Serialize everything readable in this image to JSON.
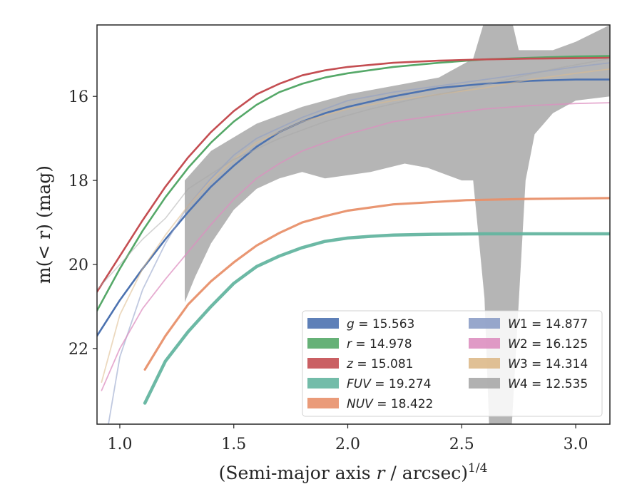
{
  "chart_data": {
    "type": "line",
    "xlabel": "(Semi-major axis r / arcsec)",
    "xlabel_var": "r",
    "xlabel_exp": "1/4",
    "ylabel": "m(< r) (mag)",
    "xlim": [
      0.9,
      3.15
    ],
    "ylim": [
      23.8,
      14.3
    ],
    "y_inverted": true,
    "xticks": [
      1.0,
      1.5,
      2.0,
      2.5,
      3.0
    ],
    "xtick_labels": [
      "1.0",
      "1.5",
      "2.0",
      "2.5",
      "3.0"
    ],
    "yticks": [
      16,
      18,
      20,
      22
    ],
    "ytick_labels": [
      "16",
      "18",
      "20",
      "22"
    ],
    "grid": false,
    "legend_position": "lower-right",
    "series": [
      {
        "name": "g",
        "label": "g = 15.563",
        "sym": "g",
        "value": "15.563",
        "color": "#4c72b0",
        "x": [
          0.9,
          1.0,
          1.1,
          1.2,
          1.3,
          1.4,
          1.5,
          1.6,
          1.7,
          1.8,
          1.9,
          2.0,
          2.2,
          2.4,
          2.6,
          2.8,
          3.0,
          3.15
        ],
        "y": [
          21.7,
          20.85,
          20.1,
          19.4,
          18.75,
          18.15,
          17.65,
          17.2,
          16.85,
          16.6,
          16.4,
          16.25,
          16.0,
          15.8,
          15.7,
          15.63,
          15.6,
          15.6
        ]
      },
      {
        "name": "r",
        "label": "r = 14.978",
        "sym": "r",
        "value": "14.978",
        "color": "#55a868",
        "x": [
          0.9,
          1.0,
          1.1,
          1.2,
          1.3,
          1.4,
          1.5,
          1.6,
          1.7,
          1.8,
          1.9,
          2.0,
          2.2,
          2.4,
          2.6,
          2.8,
          3.0,
          3.15
        ],
        "y": [
          21.1,
          20.1,
          19.2,
          18.4,
          17.7,
          17.1,
          16.6,
          16.2,
          15.9,
          15.7,
          15.55,
          15.45,
          15.3,
          15.2,
          15.12,
          15.08,
          15.05,
          15.04
        ]
      },
      {
        "name": "z",
        "label": "z = 15.081",
        "sym": "z",
        "value": "15.081",
        "color": "#c44e52",
        "x": [
          0.9,
          1.0,
          1.1,
          1.2,
          1.3,
          1.4,
          1.5,
          1.6,
          1.7,
          1.8,
          1.9,
          2.0,
          2.2,
          2.4,
          2.6,
          2.8,
          3.0,
          3.15
        ],
        "y": [
          20.65,
          19.8,
          18.95,
          18.15,
          17.45,
          16.85,
          16.35,
          15.95,
          15.7,
          15.5,
          15.38,
          15.3,
          15.2,
          15.15,
          15.12,
          15.1,
          15.09,
          15.08
        ]
      },
      {
        "name": "FUV",
        "label": "FUV = 19.274",
        "sym": "FUV",
        "value": "19.274",
        "color": "#64b5a0",
        "x": [
          1.11,
          1.2,
          1.3,
          1.4,
          1.5,
          1.6,
          1.7,
          1.8,
          1.9,
          2.0,
          2.1,
          2.2,
          2.37,
          2.6,
          2.8,
          3.0,
          3.15
        ],
        "y": [
          23.3,
          22.3,
          21.6,
          21.0,
          20.45,
          20.05,
          19.8,
          19.6,
          19.45,
          19.37,
          19.33,
          19.3,
          19.28,
          19.27,
          19.27,
          19.27,
          19.27
        ]
      },
      {
        "name": "NUV",
        "label": "NUV = 18.422",
        "sym": "NUV",
        "value": "18.422",
        "color": "#e8906a",
        "x": [
          1.11,
          1.2,
          1.3,
          1.4,
          1.5,
          1.6,
          1.7,
          1.8,
          1.9,
          2.0,
          2.2,
          2.52,
          2.8,
          3.15
        ],
        "y": [
          22.5,
          21.7,
          20.95,
          20.4,
          19.95,
          19.55,
          19.25,
          19.0,
          18.85,
          18.72,
          18.57,
          18.47,
          18.44,
          18.42
        ]
      },
      {
        "name": "W1",
        "label": "W1 = 14.877",
        "sym": "W",
        "sub": "1",
        "value": "14.877",
        "color": "#8c9dc7",
        "x": [
          0.95,
          1.0,
          1.1,
          1.2,
          1.3,
          1.4,
          1.5,
          1.6,
          1.8,
          2.0,
          2.2,
          2.4,
          2.6,
          2.8,
          3.0,
          3.15
        ],
        "y": [
          23.8,
          22.2,
          20.6,
          19.5,
          18.6,
          17.95,
          17.4,
          17.0,
          16.5,
          16.1,
          15.9,
          15.75,
          15.6,
          15.45,
          15.3,
          15.2
        ]
      },
      {
        "name": "W2",
        "label": "W2 = 16.125",
        "sym": "W",
        "sub": "2",
        "value": "16.125",
        "color": "#dd8fc0",
        "x": [
          0.92,
          1.0,
          1.1,
          1.2,
          1.3,
          1.4,
          1.5,
          1.6,
          1.7,
          1.8,
          2.0,
          2.2,
          2.4,
          2.6,
          2.8,
          3.0,
          3.15
        ],
        "y": [
          23.0,
          22.0,
          21.05,
          20.35,
          19.7,
          19.05,
          18.45,
          17.95,
          17.6,
          17.3,
          16.9,
          16.6,
          16.45,
          16.3,
          16.22,
          16.17,
          16.15
        ]
      },
      {
        "name": "W3",
        "label": "W3 = 14.314",
        "sym": "W",
        "sub": "3",
        "value": "14.314",
        "color": "#ddb98a",
        "x": [
          0.92,
          1.0,
          1.1,
          1.2,
          1.3,
          1.4,
          1.5,
          1.6,
          1.8,
          2.0,
          2.2,
          2.4,
          2.6,
          2.8,
          3.0,
          3.15
        ],
        "y": [
          22.8,
          21.2,
          20.1,
          19.3,
          18.6,
          18.0,
          17.5,
          17.1,
          16.6,
          16.3,
          16.1,
          15.95,
          15.8,
          15.6,
          15.45,
          15.35
        ]
      },
      {
        "name": "W4",
        "label": "W4 = 12.535",
        "sym": "W",
        "sub": "4",
        "value": "12.535",
        "color": "#a8a8a8",
        "x": [
          0.9,
          1.0,
          1.1,
          1.2,
          1.3,
          1.5,
          1.7,
          1.9,
          2.1,
          2.3,
          2.5,
          2.7,
          2.9,
          3.15
        ],
        "y": [
          20.6,
          20.0,
          19.4,
          18.9,
          18.2,
          17.5,
          17.0,
          16.6,
          16.3,
          16.05,
          15.85,
          15.6,
          15.35,
          15.1
        ]
      }
    ],
    "w4_band": {
      "x_start": 1.285,
      "upper": [
        [
          1.285,
          18.0
        ],
        [
          1.4,
          17.3
        ],
        [
          1.6,
          16.65
        ],
        [
          1.8,
          16.25
        ],
        [
          2.0,
          15.95
        ],
        [
          2.2,
          15.75
        ],
        [
          2.4,
          15.55
        ],
        [
          2.55,
          15.1
        ],
        [
          2.6,
          14.2
        ],
        [
          2.72,
          14.2
        ],
        [
          2.75,
          14.9
        ],
        [
          2.9,
          14.9
        ],
        [
          3.0,
          14.7
        ],
        [
          3.15,
          14.3
        ]
      ],
      "lower": [
        [
          3.15,
          16.0
        ],
        [
          3.0,
          16.1
        ],
        [
          2.9,
          16.4
        ],
        [
          2.82,
          16.9
        ],
        [
          2.78,
          18.0
        ],
        [
          2.72,
          23.8
        ],
        [
          2.62,
          23.8
        ],
        [
          2.6,
          20.8
        ],
        [
          2.55,
          18.0
        ],
        [
          2.5,
          18.0
        ],
        [
          2.45,
          17.9
        ],
        [
          2.35,
          17.7
        ],
        [
          2.25,
          17.6
        ],
        [
          2.1,
          17.8
        ],
        [
          1.9,
          17.95
        ],
        [
          1.8,
          17.8
        ],
        [
          1.7,
          17.95
        ],
        [
          1.6,
          18.2
        ],
        [
          1.5,
          18.7
        ],
        [
          1.4,
          19.5
        ],
        [
          1.33,
          20.3
        ],
        [
          1.285,
          20.9
        ]
      ]
    }
  }
}
